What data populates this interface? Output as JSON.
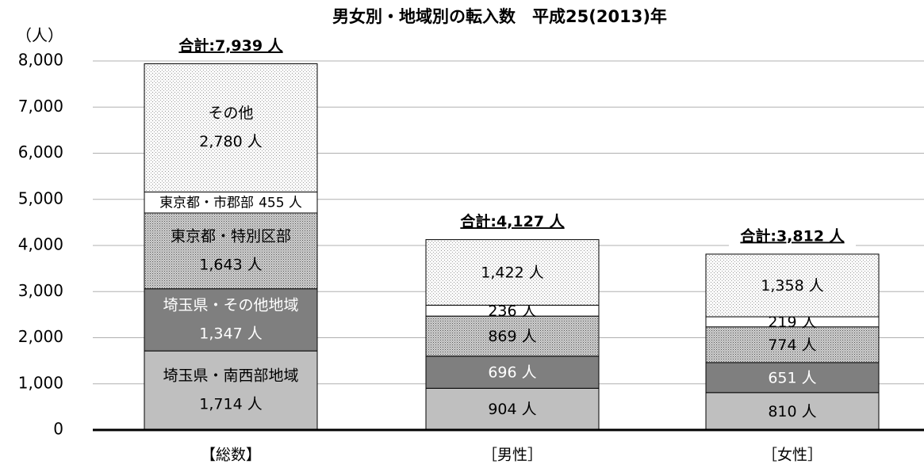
{
  "chart_data": {
    "type": "stacked-bar",
    "title": "男女別・地域別の転入数　平成25(2013)年",
    "y_axis_label": "（人）",
    "categories": [
      "【総数】",
      "［男性］",
      "［女性］"
    ],
    "series": [
      {
        "name": "埼玉県・南西部地域",
        "color": "#bfbfbf",
        "label_color": "#000000",
        "values": [
          1714,
          904,
          810
        ],
        "value_labels": [
          "1,714 人",
          "904 人",
          "810 人"
        ]
      },
      {
        "name": "埼玉県・その他地域",
        "color": "#7f7f7f",
        "label_color": "#ffffff",
        "values": [
          1347,
          696,
          651
        ],
        "value_labels": [
          "1,347 人",
          "696 人",
          "651 人"
        ]
      },
      {
        "name": "東京都・特別区部",
        "color": "#a6a6a6",
        "pattern": "dense",
        "label_color": "#000000",
        "values": [
          1643,
          869,
          774
        ],
        "value_labels": [
          "1,643 人",
          "869 人",
          "774 人"
        ]
      },
      {
        "name": "東京都・市郡部",
        "color": "#ffffff",
        "label_color": "#000000",
        "values": [
          455,
          236,
          219
        ],
        "value_labels": [
          "455 人",
          "236 人",
          "219 人"
        ]
      },
      {
        "name": "その他",
        "color": "#f2f2f2",
        "pattern": "sparse",
        "label_color": "#000000",
        "values": [
          2780,
          1422,
          1358
        ],
        "value_labels": [
          "2,780 人",
          "1,422 人",
          "1,358 人"
        ]
      }
    ],
    "totals": {
      "values": [
        7939,
        4127,
        3812
      ],
      "value_labels": [
        "合計:7,939 人",
        "合計:4,127 人",
        "合計:3,812 人"
      ]
    },
    "ylim": [
      0,
      8000
    ],
    "yticks": [
      0,
      {
        "value": 1000,
        "label": "1,000"
      },
      {
        "value": 2000,
        "label": "2,000"
      },
      {
        "value": 3000,
        "label": "3,000"
      },
      {
        "value": 4000,
        "label": "4,000"
      },
      {
        "value": 5000,
        "label": "5,000"
      },
      {
        "value": 6000,
        "label": "6,000"
      },
      {
        "value": 7000,
        "label": "7,000"
      },
      {
        "value": 8000,
        "label": "8,000"
      }
    ],
    "grid": true
  }
}
